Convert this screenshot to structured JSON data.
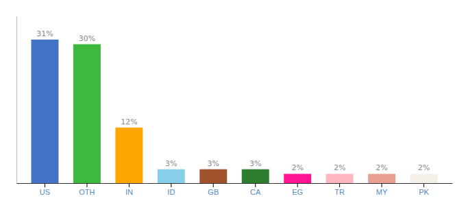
{
  "chart_data": {
    "type": "bar",
    "categories": [
      "US",
      "OTH",
      "IN",
      "ID",
      "GB",
      "CA",
      "EG",
      "TR",
      "MY",
      "PK"
    ],
    "values": [
      31,
      30,
      12,
      3,
      3,
      3,
      2,
      2,
      2,
      2
    ],
    "value_labels": [
      "31%",
      "30%",
      "12%",
      "3%",
      "3%",
      "3%",
      "2%",
      "2%",
      "2%",
      "2%"
    ],
    "colors": [
      "#4472C4",
      "#3DB93D",
      "#FFA500",
      "#87CEEB",
      "#A0522D",
      "#2E7D2E",
      "#FF1493",
      "#FFB6C1",
      "#E8A090",
      "#F5F0E8"
    ],
    "ylim": [
      0,
      36
    ],
    "data_labels": true,
    "tick_labels": "x",
    "grid": false
  }
}
